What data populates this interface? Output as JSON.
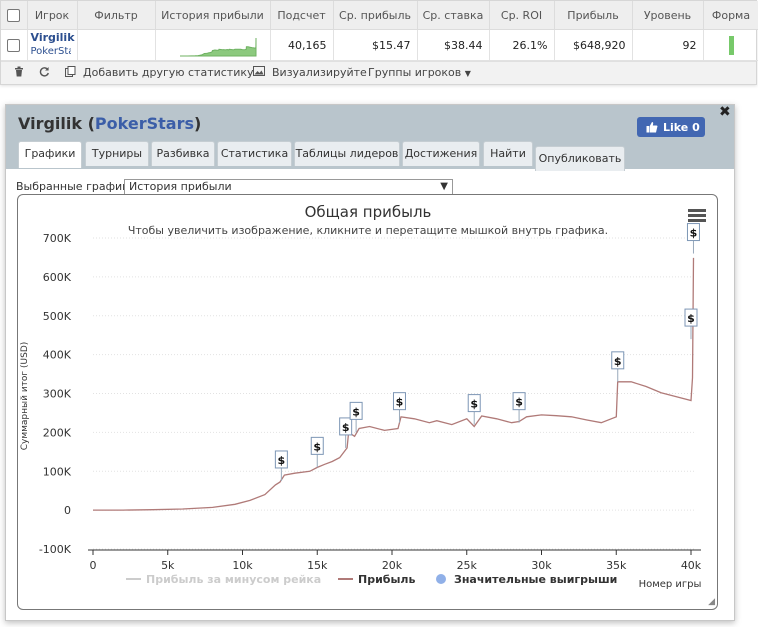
{
  "table": {
    "headers": [
      "Игрок",
      "Фильтр",
      "История прибыли",
      "Подсчет",
      "Ср. прибыль",
      "Ср. ставка",
      "Ср. ROI",
      "Прибыль",
      "Уровень",
      "Форма"
    ],
    "row": {
      "player": "Virgilik",
      "site": "PokerStars",
      "count": "40,165",
      "avg_profit": "$15.47",
      "avg_stake": "$38.44",
      "avg_roi": "26.1%",
      "profit": "$648,920",
      "level": "92",
      "remove": "x"
    }
  },
  "toolbar": {
    "add_stat": "Добавить другую статистику",
    "visualize": "Визуализируйте",
    "groups": "Группы игроков"
  },
  "panel": {
    "player": "Virgilik",
    "site": "PokerStars",
    "like_label": "Like 0",
    "tabs": [
      "Графики",
      "Турниры",
      "Разбивка",
      "Статистика",
      "Таблицы лидеров",
      "Достижения",
      "Найти",
      "Опубликовать"
    ],
    "active_tab": "Графики",
    "select_label": "Выбранные графики:",
    "select_value": "История прибыли"
  },
  "chart_data": {
    "type": "line",
    "title": "Общая прибыль",
    "subtitle": "Чтобы увеличить изображение, кликните и перетащите мышкой внутрь графика.",
    "ylabel": "Суммарный итог (USD)",
    "xlabel": "Номер игры",
    "xlim": [
      0,
      40165
    ],
    "ylim": [
      -100000,
      700000
    ],
    "x_ticks": [
      "0",
      "5k",
      "10k",
      "15k",
      "20k",
      "25k",
      "30k",
      "35k",
      "40k"
    ],
    "y_ticks": [
      "-100K",
      "0",
      "100K",
      "200K",
      "300K",
      "400K",
      "500K",
      "600K",
      "700K"
    ],
    "grid": "horizontal dotted",
    "legend": [
      {
        "name": "Прибыль за минусом рейка",
        "color": "#cccccc",
        "hidden": true
      },
      {
        "name": "Прибыль",
        "color": "#b07a78"
      },
      {
        "name": "Значительные выигрыши",
        "color": "#90b0e8"
      }
    ],
    "series": [
      {
        "name": "Прибыль",
        "color": "#b07a78",
        "points": [
          [
            0,
            0
          ],
          [
            2000,
            0
          ],
          [
            4000,
            1000
          ],
          [
            6000,
            3000
          ],
          [
            8000,
            7000
          ],
          [
            9500,
            15000
          ],
          [
            10500,
            25000
          ],
          [
            11500,
            40000
          ],
          [
            12200,
            65000
          ],
          [
            12500,
            72000
          ],
          [
            12800,
            90000
          ],
          [
            13500,
            95000
          ],
          [
            14500,
            100000
          ],
          [
            15000,
            110000
          ],
          [
            15500,
            118000
          ],
          [
            16000,
            125000
          ],
          [
            16500,
            135000
          ],
          [
            17000,
            160000
          ],
          [
            17100,
            200000
          ],
          [
            17500,
            190000
          ],
          [
            17800,
            210000
          ],
          [
            18500,
            215000
          ],
          [
            19500,
            205000
          ],
          [
            20400,
            210000
          ],
          [
            20600,
            240000
          ],
          [
            21500,
            235000
          ],
          [
            22500,
            225000
          ],
          [
            23000,
            230000
          ],
          [
            24000,
            220000
          ],
          [
            25000,
            235000
          ],
          [
            25500,
            215000
          ],
          [
            26000,
            242000
          ],
          [
            27000,
            235000
          ],
          [
            28000,
            225000
          ],
          [
            28500,
            228000
          ],
          [
            29000,
            240000
          ],
          [
            30000,
            245000
          ],
          [
            31000,
            243000
          ],
          [
            32000,
            240000
          ],
          [
            33000,
            232000
          ],
          [
            34000,
            225000
          ],
          [
            35000,
            240000
          ],
          [
            35100,
            330000
          ],
          [
            36000,
            330000
          ],
          [
            37000,
            318000
          ],
          [
            38000,
            302000
          ],
          [
            39000,
            292000
          ],
          [
            40000,
            282000
          ],
          [
            40100,
            340000
          ],
          [
            40165,
            648920
          ]
        ]
      }
    ],
    "markers": [
      {
        "x": 12600,
        "y": 75000,
        "label": "$"
      },
      {
        "x": 15000,
        "y": 110000,
        "label": "$"
      },
      {
        "x": 16900,
        "y": 160000,
        "label": "$"
      },
      {
        "x": 17600,
        "y": 200000,
        "label": "$"
      },
      {
        "x": 20500,
        "y": 225000,
        "label": "$"
      },
      {
        "x": 25500,
        "y": 220000,
        "label": "$"
      },
      {
        "x": 28500,
        "y": 225000,
        "label": "$"
      },
      {
        "x": 35100,
        "y": 330000,
        "label": "$"
      },
      {
        "x": 40000,
        "y": 440000,
        "label": "$"
      },
      {
        "x": 40165,
        "y": 660000,
        "label": "$"
      }
    ]
  }
}
